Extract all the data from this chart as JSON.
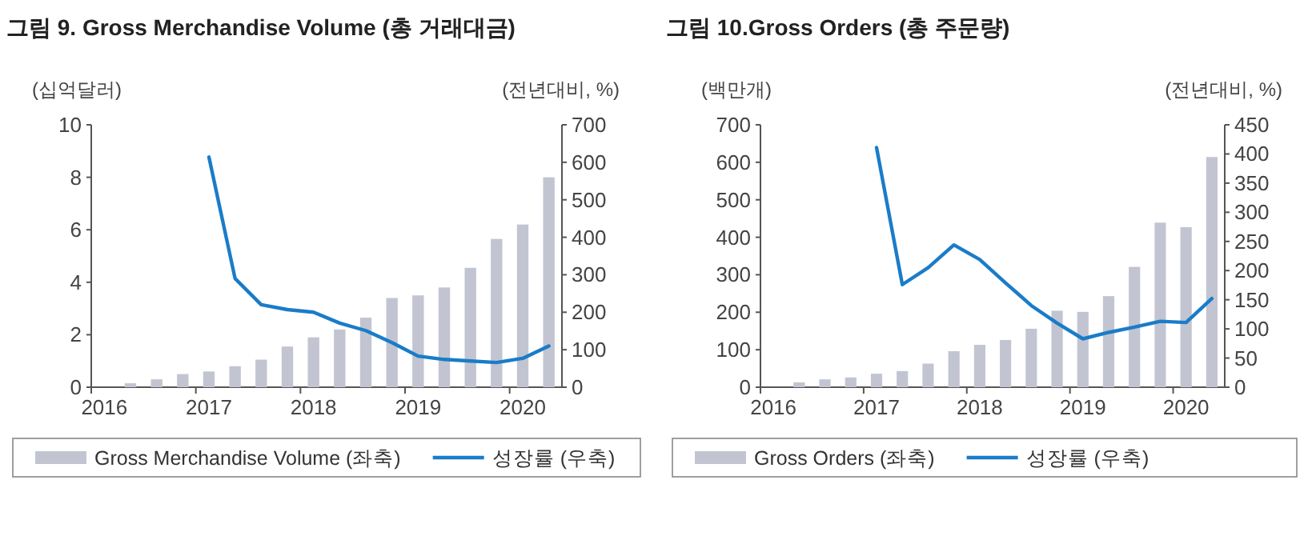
{
  "chart_data": [
    {
      "type": "bar",
      "title": "그림 9. Gross Merchandise Volume (총 거래대금)",
      "ylabel": "(십억달러)",
      "y2label": "(전년대비, %)",
      "categories": [
        "2016",
        null,
        null,
        null,
        "2017",
        null,
        null,
        null,
        "2018",
        null,
        null,
        null,
        "2019",
        null,
        null,
        null,
        "2020",
        null
      ],
      "ylim": [
        0,
        10
      ],
      "yticks": [
        0,
        2,
        4,
        6,
        8,
        10
      ],
      "y2lim": [
        0,
        700
      ],
      "y2ticks": [
        0,
        100,
        200,
        300,
        400,
        500,
        600,
        700
      ],
      "legend": "bottom",
      "series": [
        {
          "name": "Gross Merchandise Volume (좌축)",
          "color": "#c2c5d1",
          "values": [
            null,
            0.15,
            0.3,
            0.5,
            0.6,
            0.8,
            1.05,
            1.55,
            1.9,
            2.2,
            2.65,
            3.4,
            3.5,
            3.8,
            4.55,
            5.65,
            6.2,
            8.0
          ]
        },
        {
          "name": "성장률 (우축)",
          "type": "line",
          "axis": "y2",
          "color": "#1a7cc8",
          "values": [
            null,
            null,
            null,
            null,
            614,
            290,
            220,
            207,
            200,
            171,
            151,
            119,
            83,
            74,
            70,
            66,
            77,
            110
          ]
        }
      ]
    },
    {
      "type": "bar",
      "title": "그림 10.Gross Orders (총 주문량)",
      "ylabel": "(백만개)",
      "y2label": "(전년대비, %)",
      "categories": [
        "2016",
        null,
        null,
        null,
        "2017",
        null,
        null,
        null,
        "2018",
        null,
        null,
        null,
        "2019",
        null,
        null,
        null,
        "2020",
        null
      ],
      "ylim": [
        0,
        700
      ],
      "yticks": [
        0,
        100,
        200,
        300,
        400,
        500,
        600,
        700
      ],
      "y2lim": [
        0,
        450
      ],
      "y2ticks": [
        0,
        50,
        100,
        150,
        200,
        250,
        300,
        350,
        400,
        450
      ],
      "legend": "bottom",
      "series": [
        {
          "name": "Gross Orders (좌축)",
          "color": "#c2c5d1",
          "values": [
            null,
            13,
            21,
            26,
            36,
            43,
            63,
            96,
            113,
            126,
            156,
            204,
            201,
            243,
            321,
            439,
            427,
            614
          ]
        },
        {
          "name": "성장률 (우축)",
          "type": "line",
          "axis": "y2",
          "color": "#1a7cc8",
          "values": [
            null,
            null,
            null,
            null,
            411,
            176,
            205,
            244,
            219,
            179,
            140,
            110,
            83,
            94,
            103,
            113,
            111,
            152
          ]
        }
      ]
    }
  ]
}
